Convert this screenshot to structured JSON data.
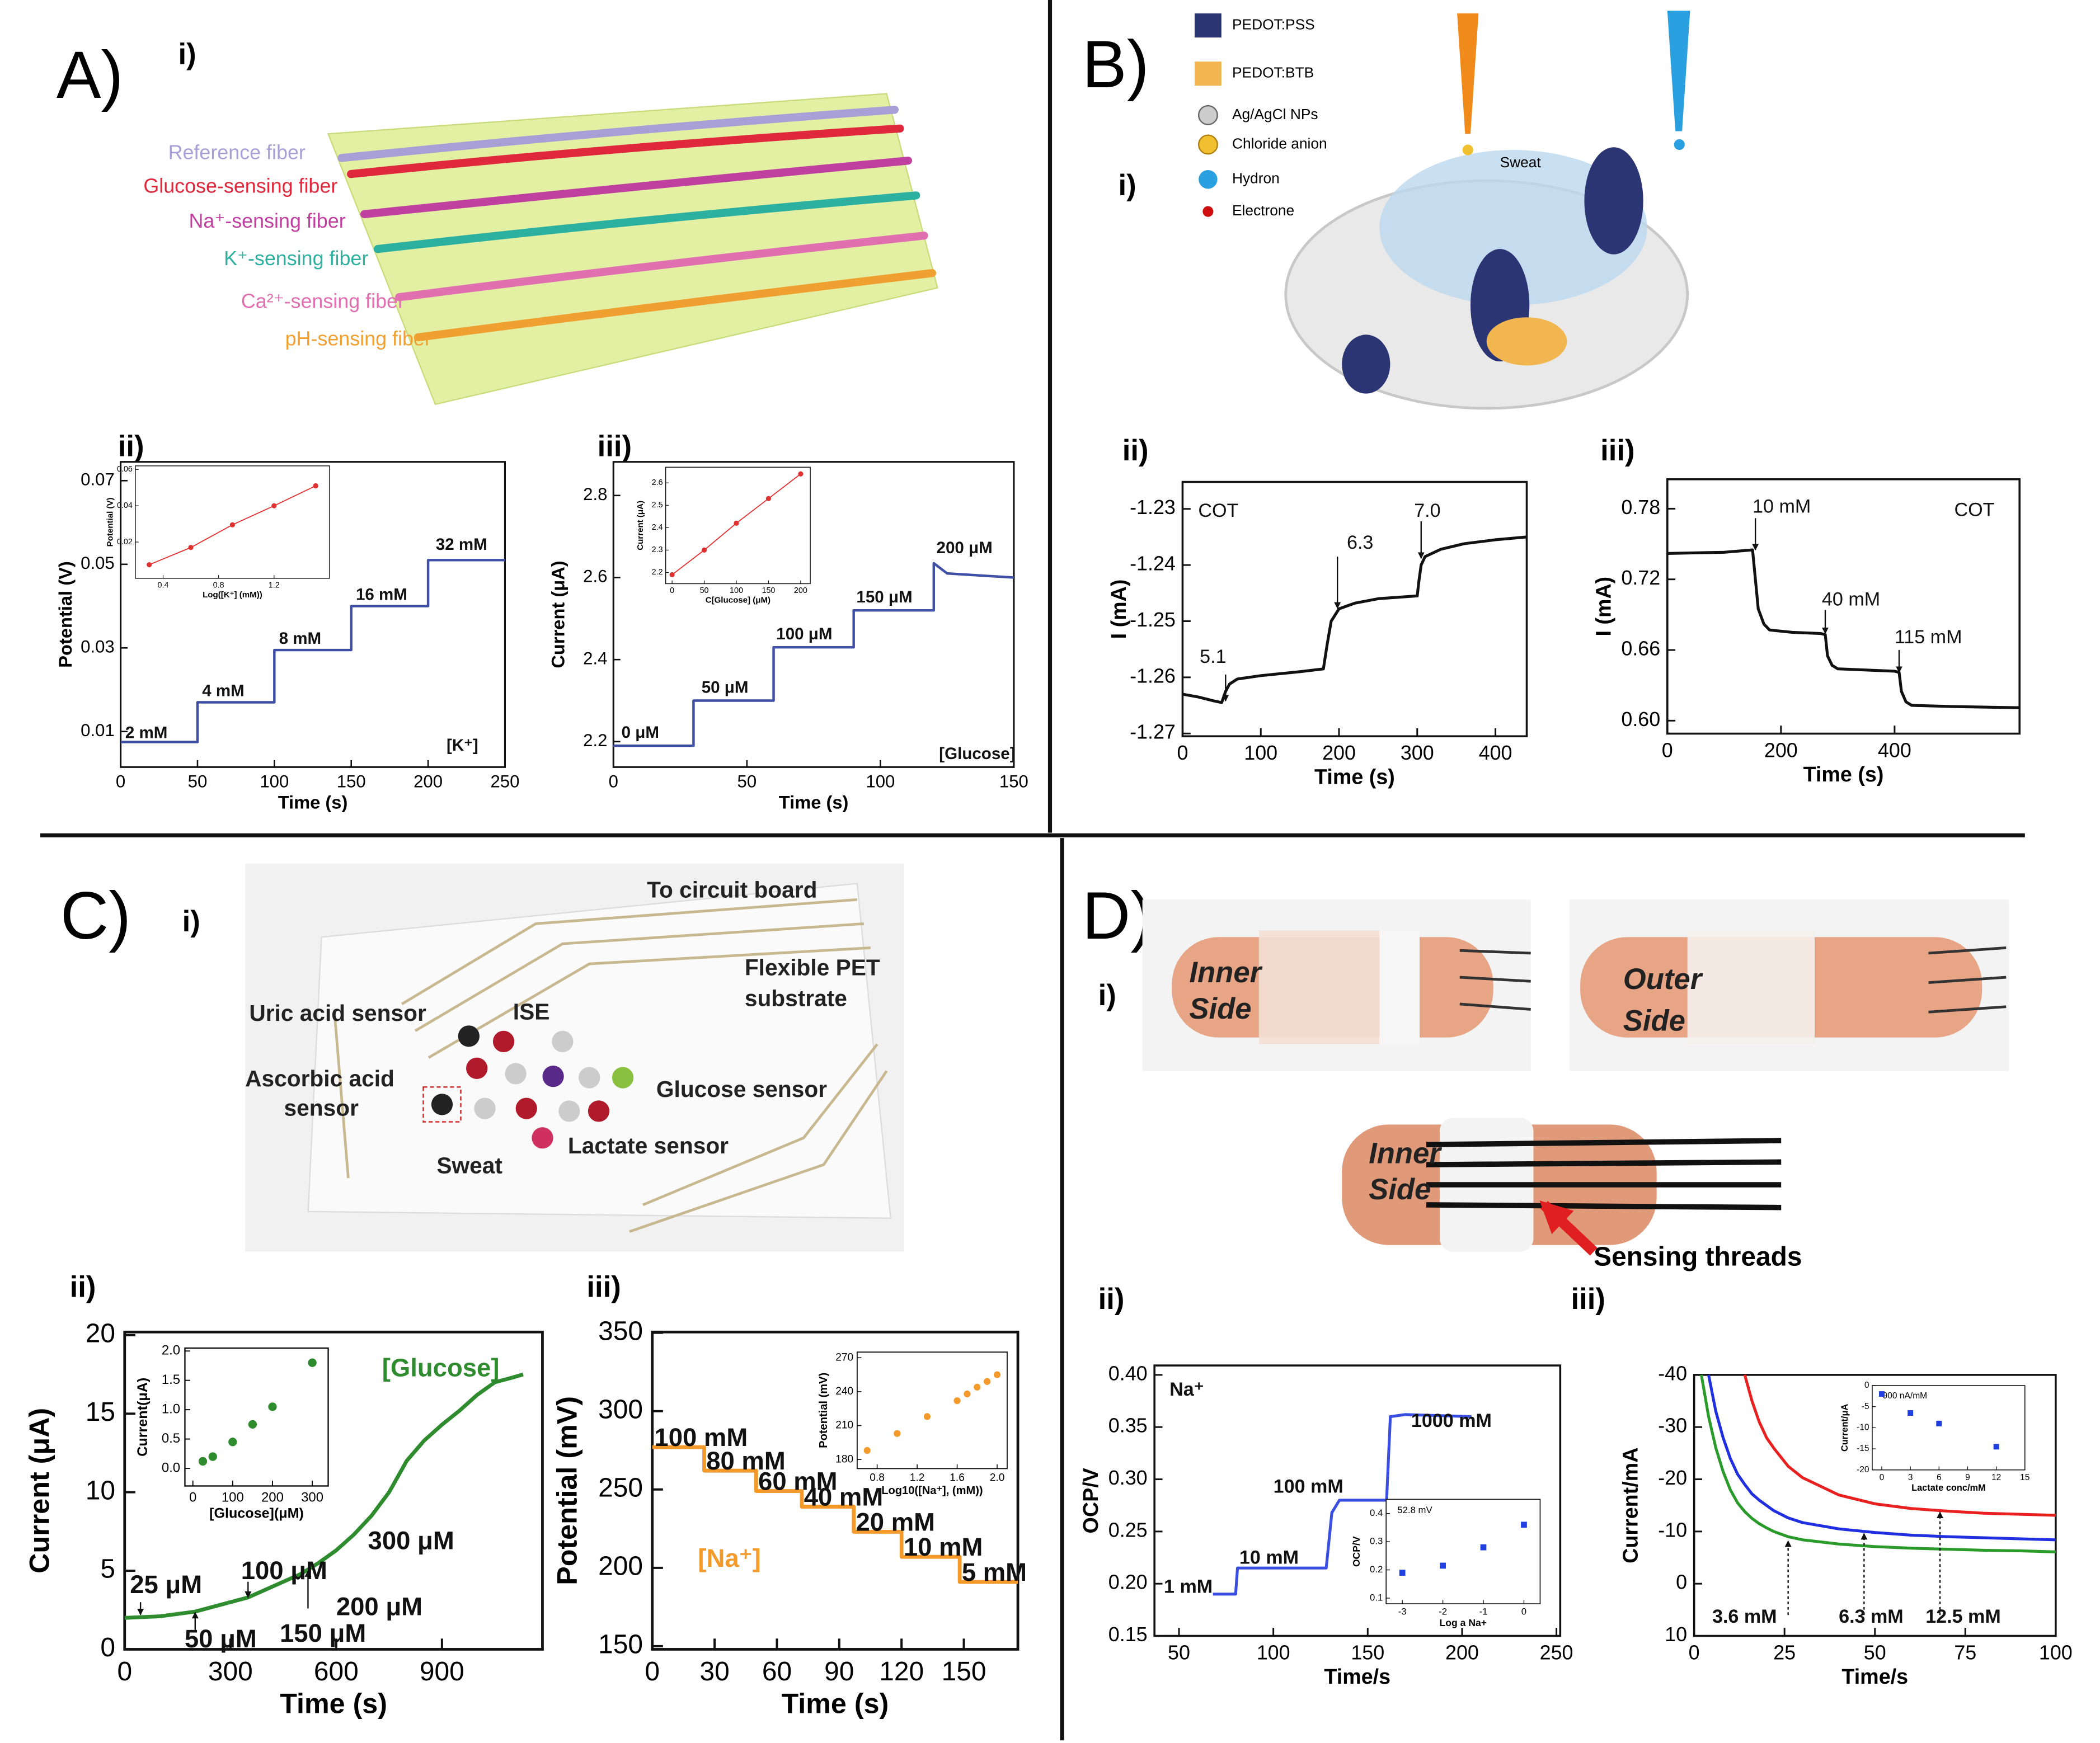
{
  "panels": [
    {
      "letter": "A)",
      "parts": [
        "i)",
        "ii)",
        "iii)"
      ]
    },
    {
      "letter": "B)",
      "parts": [
        "i)",
        "ii)",
        "iii)"
      ]
    },
    {
      "letter": "C)",
      "parts": [
        "i)",
        "ii)",
        "iii)"
      ]
    },
    {
      "letter": "D)",
      "parts": [
        "i)",
        "ii)",
        "iii)"
      ]
    }
  ],
  "illustrations": {
    "fibers": [
      "Reference fiber",
      "Glucose-sensing fiber",
      "Na⁺-sensing fiber",
      "K⁺-sensing fiber",
      "Ca²⁺-sensing fiber",
      "pH-sensing fiber"
    ],
    "legend": [
      "PEDOT:PSS",
      "PEDOT:BTB",
      "Ag/AgCl NPs",
      "Chloride anion",
      "Hydron",
      "Electrone"
    ],
    "sweat": "Sweat",
    "patch": [
      "To circuit board",
      "Flexible PET",
      "substrate",
      "Uric acid sensor",
      "ISE",
      "Ascorbic acid",
      "sensor",
      "Glucose sensor",
      "Lactate sensor",
      "Sweat"
    ],
    "bandage": [
      "Inner",
      "Side",
      "Outer",
      "Side",
      "Inner",
      "Side",
      "Sensing threads"
    ]
  },
  "chart_data": [
    {
      "type": "line",
      "xlabel": "Time (s)",
      "ylabel": "Potential (V)",
      "xlim": [
        0,
        250
      ],
      "ylim": [
        0.0015,
        0.0745
      ],
      "xticks": [
        0,
        50,
        100,
        150,
        200,
        250
      ],
      "yticks": [
        0.01,
        0.03,
        0.05,
        0.07
      ],
      "x": [
        0,
        50,
        50,
        100,
        100,
        150,
        150,
        200,
        200,
        250
      ],
      "series": [
        {
          "color": "#3f4fa6",
          "values": [
            0.0075,
            0.0075,
            0.017,
            0.017,
            0.0295,
            0.0295,
            0.04,
            0.04,
            0.051,
            0.051
          ]
        }
      ],
      "annotations": [
        "2 mM",
        "4 mM",
        "8 mM",
        "16 mM",
        "32 mM",
        "[K⁺]"
      ]
    },
    {
      "type": "scatter",
      "connect": true,
      "xlabel": "Log([K⁺] (mM))",
      "ylabel": "Potential (V)",
      "xlim": [
        0.2,
        1.6
      ],
      "ylim": [
        0,
        0.062
      ],
      "xticks": [
        0.4,
        0.8,
        1.2
      ],
      "yticks": [
        0.02,
        0.04,
        0.06
      ],
      "x": [
        0.3,
        0.6,
        0.9,
        1.2,
        1.5
      ],
      "series": [
        {
          "color": "#e03030",
          "values": [
            0.0075,
            0.017,
            0.0295,
            0.04,
            0.051
          ]
        }
      ]
    },
    {
      "type": "line",
      "xlabel": "Time (s)",
      "ylabel": "Current (μA)",
      "xlim": [
        0,
        150
      ],
      "ylim": [
        2.138,
        2.882
      ],
      "xticks": [
        0,
        50,
        100,
        150
      ],
      "yticks": [
        2.2,
        2.4,
        2.6,
        2.8
      ],
      "x": [
        0,
        30,
        30,
        60,
        60,
        90,
        90,
        120,
        120,
        125,
        150
      ],
      "series": [
        {
          "color": "#3f4fa6",
          "values": [
            2.19,
            2.19,
            2.3,
            2.3,
            2.43,
            2.43,
            2.52,
            2.52,
            2.635,
            2.61,
            2.6
          ]
        }
      ],
      "annotations": [
        "0 μM",
        "50 μM",
        "100 μM",
        "150 μM",
        "200 μM",
        "[Glucose]"
      ]
    },
    {
      "type": "scatter",
      "connect": true,
      "xlabel": "C[Glucose] (μM)",
      "ylabel": "Current (μA)",
      "xlim": [
        -10,
        215
      ],
      "ylim": [
        2.15,
        2.67
      ],
      "xticks": [
        0,
        50,
        100,
        150,
        200
      ],
      "yticks": [
        2.2,
        2.3,
        2.4,
        2.5,
        2.6
      ],
      "x": [
        0,
        50,
        100,
        150,
        200
      ],
      "series": [
        {
          "color": "#e03030",
          "values": [
            2.19,
            2.3,
            2.42,
            2.53,
            2.64
          ]
        }
      ]
    },
    {
      "type": "line",
      "xlabel": "Time (s)",
      "ylabel": "I (mA)",
      "xlim": [
        0,
        440
      ],
      "ylim": [
        -1.2705,
        -1.2252
      ],
      "xticks": [
        0,
        100,
        200,
        300,
        400
      ],
      "yticks": [
        -1.23,
        -1.24,
        -1.25,
        -1.26,
        -1.27
      ],
      "x": [
        0,
        20,
        40,
        50,
        55,
        60,
        70,
        100,
        150,
        180,
        185,
        190,
        200,
        220,
        250,
        300,
        302,
        305,
        310,
        330,
        360,
        400,
        440
      ],
      "series": [
        {
          "color": "#111111",
          "values": [
            -1.263,
            -1.2635,
            -1.2642,
            -1.2645,
            -1.2625,
            -1.2612,
            -1.2603,
            -1.2597,
            -1.259,
            -1.2585,
            -1.254,
            -1.25,
            -1.2478,
            -1.2468,
            -1.246,
            -1.2455,
            -1.243,
            -1.24,
            -1.2385,
            -1.2372,
            -1.2362,
            -1.2355,
            -1.235
          ]
        }
      ],
      "annotations": [
        "COT",
        "5.1",
        "6.3",
        "7.0"
      ]
    },
    {
      "type": "line",
      "xlabel": "Time (s)",
      "ylabel": "I (mA)",
      "xlim": [
        0,
        620
      ],
      "ylim": [
        0.589,
        0.805
      ],
      "xticks": [
        0,
        200,
        400
      ],
      "yticks": [
        {
          "value": 0.6,
          "label": "0.60"
        },
        0.66,
        0.72,
        0.78
      ],
      "x": [
        0,
        100,
        150,
        155,
        160,
        170,
        180,
        220,
        270,
        278,
        282,
        290,
        300,
        350,
        400,
        408,
        412,
        420,
        430,
        500,
        620
      ],
      "series": [
        {
          "color": "#111111",
          "values": [
            0.742,
            0.743,
            0.745,
            0.72,
            0.695,
            0.682,
            0.677,
            0.675,
            0.674,
            0.673,
            0.655,
            0.647,
            0.644,
            0.643,
            0.642,
            0.641,
            0.625,
            0.616,
            0.613,
            0.612,
            0.611
          ]
        }
      ],
      "annotations": [
        "10 mM",
        "40 mM",
        "115 mM",
        "COT"
      ]
    },
    {
      "type": "line",
      "xlabel": "Time (s)",
      "ylabel": "Current (μA)",
      "xlim": [
        0,
        1185
      ],
      "ylim": [
        0,
        20.2
      ],
      "xticks": [
        0,
        300,
        600,
        900
      ],
      "yticks": [
        0,
        5,
        10,
        15,
        20
      ],
      "x": [
        0,
        100,
        200,
        300,
        350,
        400,
        450,
        500,
        550,
        600,
        650,
        700,
        750,
        800,
        850,
        900,
        950,
        1000,
        1050,
        1100,
        1130
      ],
      "series": [
        {
          "color": "#2e8b2e",
          "values": [
            2,
            2.1,
            2.4,
            3,
            3.3,
            3.8,
            4.3,
            4.8,
            5.5,
            6.3,
            7.3,
            8.5,
            10,
            12,
            13.3,
            14.3,
            15.2,
            16.2,
            17,
            17.3,
            17.5
          ]
        }
      ],
      "annotations": [
        "[Glucose]",
        "25 μM",
        "50 μM",
        "100 μM",
        "150 μM",
        "200 μM",
        "300 μM"
      ]
    },
    {
      "type": "scatter",
      "xlabel": "[Glucose](μM)",
      "ylabel": "Current(μA)",
      "xlim": [
        -20,
        340
      ],
      "ylim": [
        -0.3,
        2.05
      ],
      "xticks": [
        0,
        100,
        200,
        300
      ],
      "yticks": [
        {
          "value": 0,
          "label": "0.0"
        },
        {
          "value": 0.5,
          "label": "0.5"
        },
        {
          "value": 1,
          "label": "1.0"
        },
        {
          "value": 1.5,
          "label": "1.5"
        },
        {
          "value": 2,
          "label": "2.0"
        }
      ],
      "x": [
        25,
        50,
        100,
        150,
        200,
        300
      ],
      "series": [
        {
          "color": "#2e8b2e",
          "values": [
            0.12,
            0.2,
            0.45,
            0.75,
            1.05,
            1.8
          ]
        }
      ]
    },
    {
      "type": "line",
      "xlabel": "Time (s)",
      "ylabel": "Potential (mV)",
      "xlim": [
        0,
        176
      ],
      "ylim": [
        148,
        350.5
      ],
      "xticks": [
        0,
        30,
        60,
        90,
        120,
        150
      ],
      "yticks": [
        150,
        200,
        250,
        300,
        350
      ],
      "x": [
        0,
        25,
        25,
        50,
        50,
        72,
        72,
        97,
        97,
        120,
        120,
        148,
        148,
        176
      ],
      "series": [
        {
          "color": "#f39a2a",
          "values": [
            277,
            277,
            262,
            262,
            249,
            249,
            239,
            239,
            223,
            223,
            207,
            207,
            191,
            191
          ]
        }
      ],
      "annotations": [
        "100 mM",
        "80 mM",
        "60 mM",
        "40 mM",
        "20 mM",
        "10 mM",
        "5 mM",
        "[Na⁺]"
      ]
    },
    {
      "type": "scatter",
      "xlabel": "Log10([Na⁺], (mM))",
      "ylabel": "Potential (mV)",
      "xlim": [
        0.6,
        2.1
      ],
      "ylim": [
        172,
        275
      ],
      "xticks": [
        0.8,
        1.2,
        1.6,
        {
          "value": 2,
          "label": "2.0"
        }
      ],
      "yticks": [
        180,
        210,
        240,
        270
      ],
      "x": [
        0.7,
        1.0,
        1.3,
        1.6,
        1.7,
        1.8,
        1.9,
        2.0
      ],
      "series": [
        {
          "color": "#f39a2a",
          "values": [
            188,
            203,
            218,
            232,
            238,
            244,
            249,
            255
          ]
        }
      ]
    },
    {
      "type": "line",
      "xlabel": "Time/s",
      "ylabel": "OCP/V",
      "xlim": [
        37,
        252
      ],
      "ylim": [
        0.15,
        0.409
      ],
      "xticks": [
        50,
        100,
        150,
        200,
        250
      ],
      "yticks": [
        0.15,
        {
          "value": 0.2,
          "label": "0.20"
        },
        0.25,
        {
          "value": 0.3,
          "label": "0.30"
        },
        0.35,
        {
          "value": 0.4,
          "label": "0.40"
        }
      ],
      "x": [
        68,
        80,
        81,
        128,
        131,
        135,
        160,
        162,
        170,
        205
      ],
      "series": [
        {
          "color": "#3a4fe0",
          "values": [
            0.19,
            0.19,
            0.215,
            0.215,
            0.268,
            0.28,
            0.28,
            0.36,
            0.362,
            0.36
          ]
        }
      ],
      "annotations": [
        "Na⁺",
        "1 mM",
        "10 mM",
        "100 mM",
        "1000 mM"
      ]
    },
    {
      "type": "scatter",
      "marker": "square",
      "xlabel": "Log a Na+",
      "ylabel": "OCP/V",
      "note": "52.8 mV",
      "xlim": [
        -3.4,
        0.4
      ],
      "ylim": [
        0.08,
        0.45
      ],
      "xticks": [
        -3,
        -2,
        -1,
        0
      ],
      "yticks": [
        0.1,
        0.2,
        0.3,
        0.4
      ],
      "x": [
        -3,
        -2,
        -1,
        0
      ],
      "series": [
        {
          "color": "#1f3fe0",
          "values": [
            0.19,
            0.215,
            0.28,
            0.36
          ]
        }
      ]
    },
    {
      "type": "line",
      "xlabel": "Time/s",
      "ylabel": "Current/mA",
      "xlim": [
        0,
        100
      ],
      "ylim": [
        10,
        -40
      ],
      "xticks": [
        0,
        25,
        50,
        75,
        100
      ],
      "yticks": [
        10,
        0,
        -10,
        -20,
        -30,
        -40
      ],
      "x": [
        2,
        4,
        6,
        8,
        10,
        12,
        14,
        16,
        18,
        20,
        22,
        26,
        30,
        40,
        50,
        60,
        70,
        80,
        90,
        100
      ],
      "series": [
        {
          "color": "#2a9a2a",
          "values": [
            -40,
            -32,
            -26,
            -21.5,
            -18,
            -15.5,
            -13.8,
            -12.5,
            -11.5,
            -10.7,
            -10,
            -9,
            -8.4,
            -7.6,
            -7.1,
            -6.8,
            -6.6,
            -6.4,
            -6.3,
            -6.1
          ]
        },
        {
          "color": "#2030e0",
          "values": [
            null,
            -40,
            -33,
            -28,
            -24,
            -21,
            -19,
            -17.2,
            -16,
            -15,
            -14,
            -12.6,
            -11.7,
            -10.5,
            -9.8,
            -9.3,
            -9,
            -8.8,
            -8.6,
            -8.4
          ]
        },
        {
          "color": "#e82020",
          "values": [
            null,
            null,
            null,
            null,
            null,
            null,
            -40,
            -35,
            -31,
            -28,
            -26,
            -22.5,
            -20.3,
            -17,
            -15.3,
            -14.4,
            -13.9,
            -13.5,
            -13.3,
            -13.1
          ]
        }
      ],
      "annotations": [
        "3.6 mM",
        "6.3 mM",
        "12.5 mM"
      ]
    },
    {
      "type": "scatter",
      "marker": "square",
      "xlabel": "Lactate conc/mM",
      "ylabel": "Current/μA",
      "note": "900 nA/mM",
      "xlim": [
        -1,
        15
      ],
      "ylim": [
        -20,
        0
      ],
      "xticks": [
        0,
        3,
        6,
        9,
        12,
        15
      ],
      "yticks": [
        0,
        -5,
        -10,
        -15,
        -20
      ],
      "x": [
        0,
        3,
        6,
        12
      ],
      "series": [
        {
          "color": "#1f3fe0",
          "values": [
            -2,
            -6.5,
            -9,
            -14.5
          ]
        }
      ]
    }
  ]
}
